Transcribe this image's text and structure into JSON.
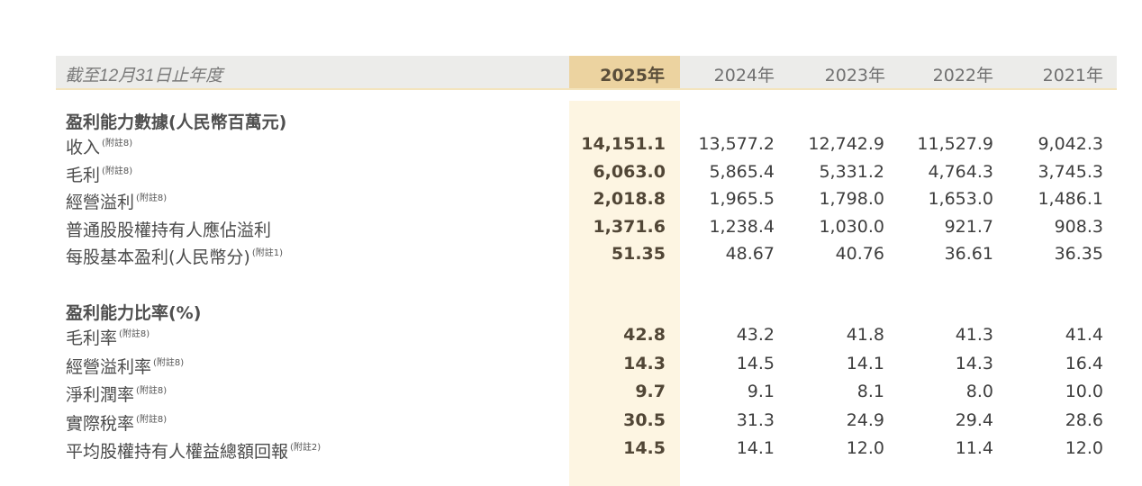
{
  "header": {
    "label": "截至12月31日止年度",
    "years": [
      "2025年",
      "2024年",
      "2023年",
      "2022年",
      "2021年"
    ]
  },
  "sections": [
    {
      "title": "盈利能力數據(人民幣百萬元)",
      "rows": [
        {
          "label": "收入",
          "note": "(附註8)",
          "values": [
            "14,151.1",
            "13,577.2",
            "12,742.9",
            "11,527.9",
            "9,042.3"
          ]
        },
        {
          "label": "毛利",
          "note": "(附註8)",
          "values": [
            "6,063.0",
            "5,865.4",
            "5,331.2",
            "4,764.3",
            "3,745.3"
          ]
        },
        {
          "label": "經營溢利",
          "note": "(附註8)",
          "values": [
            "2,018.8",
            "1,965.5",
            "1,798.0",
            "1,653.0",
            "1,486.1"
          ]
        },
        {
          "label": "普通股股權持有人應佔溢利",
          "note": "",
          "values": [
            "1,371.6",
            "1,238.4",
            "1,030.0",
            "921.7",
            "908.3"
          ]
        },
        {
          "label": "每股基本盈利(人民幣分)",
          "note": "(附註1)",
          "values": [
            "51.35",
            "48.67",
            "40.76",
            "36.61",
            "36.35"
          ]
        }
      ]
    },
    {
      "title": "盈利能力比率(%)",
      "rows": [
        {
          "label": "毛利率",
          "note": "(附註8)",
          "values": [
            "42.8",
            "43.2",
            "41.8",
            "41.3",
            "41.4"
          ]
        },
        {
          "label": "經營溢利率",
          "note": "(附註8)",
          "values": [
            "14.3",
            "14.5",
            "14.1",
            "14.3",
            "16.4"
          ]
        },
        {
          "label": "淨利潤率",
          "note": "(附註8)",
          "values": [
            "9.7",
            "9.1",
            "8.1",
            "8.0",
            "10.0"
          ]
        },
        {
          "label": "實際稅率",
          "note": "(附註8)",
          "values": [
            "30.5",
            "31.3",
            "24.9",
            "29.4",
            "28.6"
          ]
        },
        {
          "label": "平均股權持有人權益總額回報",
          "note": "(附註2)",
          "values": [
            "14.5",
            "14.1",
            "12.0",
            "11.4",
            "12.0"
          ]
        }
      ]
    }
  ],
  "colors": {
    "header_bg": "#ececea",
    "current_year_header": "#ecd3a0",
    "current_year_column": "#fdf5e2"
  }
}
